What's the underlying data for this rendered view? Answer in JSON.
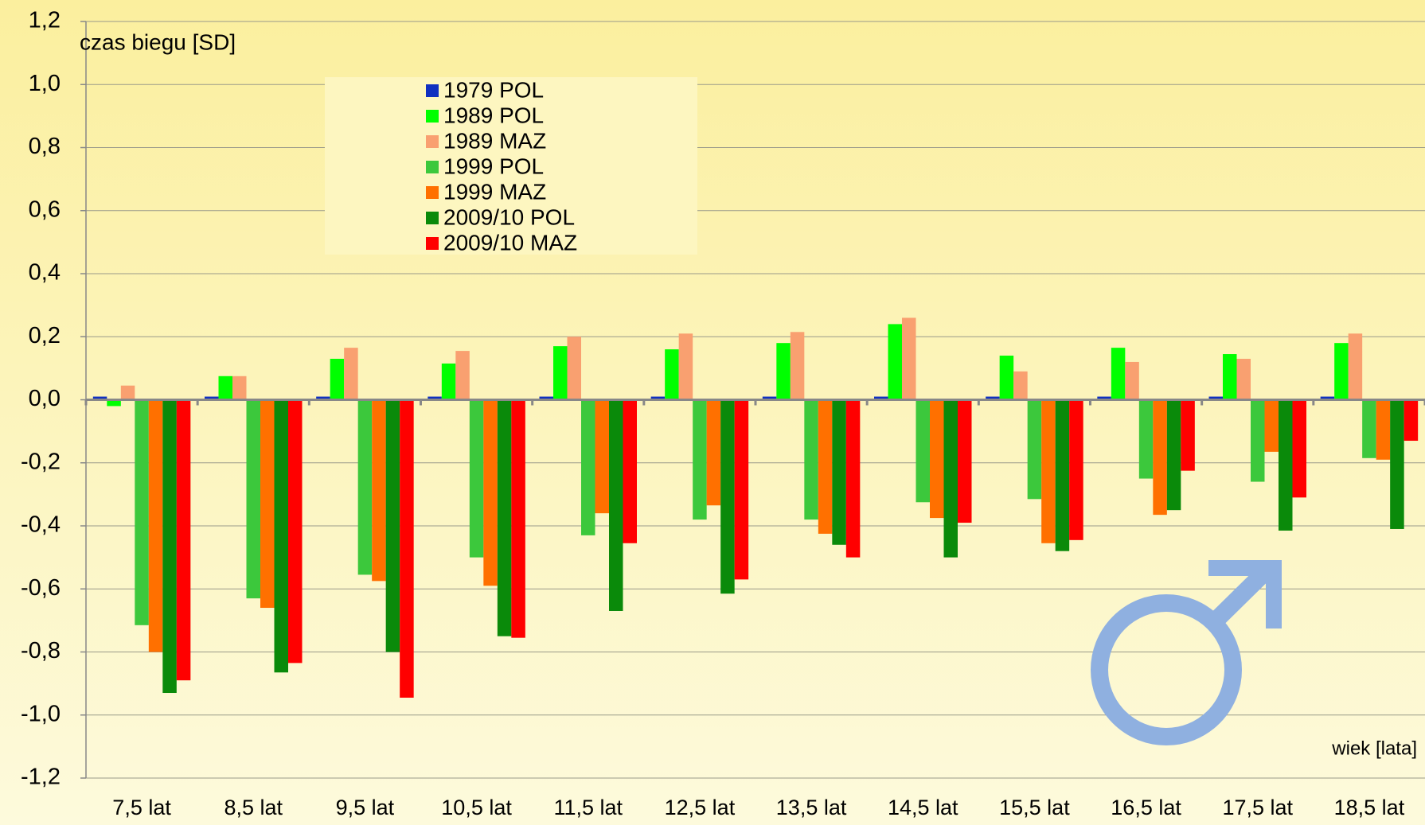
{
  "chart_data": {
    "type": "bar",
    "y_label": "czas biegu [SD]",
    "x_label": "wiek [lata]",
    "categories": [
      "7,5 lat",
      "8,5 lat",
      "9,5 lat",
      "10,5 lat",
      "11,5 lat",
      "12,5 lat",
      "13,5 lat",
      "14,5 lat",
      "15,5 lat",
      "16,5 lat",
      "17,5 lat",
      "18,5 lat"
    ],
    "series": [
      {
        "name": "1979 POL",
        "color": "#1030c0",
        "values": [
          0.01,
          0.01,
          0.01,
          0.01,
          0.01,
          0.01,
          0.01,
          0.01,
          0.01,
          0.01,
          0.01,
          0.01
        ]
      },
      {
        "name": "1989 POL",
        "color": "#00ff00",
        "values": [
          -0.02,
          0.075,
          0.13,
          0.115,
          0.17,
          0.16,
          0.18,
          0.24,
          0.14,
          0.165,
          0.145,
          0.18
        ]
      },
      {
        "name": "1989 MAZ",
        "color": "#f9a070",
        "values": [
          0.045,
          0.075,
          0.165,
          0.155,
          0.2,
          0.21,
          0.215,
          0.26,
          0.09,
          0.12,
          0.13,
          0.21
        ]
      },
      {
        "name": "1999 POL",
        "color": "#3cc83c",
        "values": [
          -0.715,
          -0.63,
          -0.555,
          -0.5,
          -0.43,
          -0.38,
          -0.38,
          -0.325,
          -0.315,
          -0.25,
          -0.26,
          -0.185
        ]
      },
      {
        "name": "1999 MAZ",
        "color": "#ff7000",
        "values": [
          -0.8,
          -0.66,
          -0.575,
          -0.59,
          -0.36,
          -0.335,
          -0.425,
          -0.375,
          -0.455,
          -0.365,
          -0.165,
          -0.19
        ]
      },
      {
        "name": "2009/10 POL",
        "color": "#0a8a0a",
        "values": [
          -0.93,
          -0.865,
          -0.8,
          -0.75,
          -0.67,
          -0.615,
          -0.46,
          -0.5,
          -0.48,
          -0.35,
          -0.415,
          -0.41
        ]
      },
      {
        "name": "2009/10 MAZ",
        "color": "#ff0000",
        "values": [
          -0.89,
          -0.835,
          -0.945,
          -0.755,
          -0.455,
          -0.57,
          -0.5,
          -0.39,
          -0.445,
          -0.225,
          -0.31,
          -0.13
        ]
      }
    ],
    "ylim": [
      -1.2,
      1.2
    ],
    "yticks": [
      {
        "value": -1.2,
        "label": "-1,2"
      },
      {
        "value": -1.0,
        "label": "-1,0"
      },
      {
        "value": -0.8,
        "label": "-0,8"
      },
      {
        "value": -0.6,
        "label": "-0,6"
      },
      {
        "value": -0.4,
        "label": "-0,4"
      },
      {
        "value": -0.2,
        "label": "-0,2"
      },
      {
        "value": 0,
        "label": "0,0"
      },
      {
        "value": 0.2,
        "label": "0,2"
      },
      {
        "value": 0.4,
        "label": "0,4"
      },
      {
        "value": 0.6,
        "label": "0,6"
      },
      {
        "value": 0.8,
        "label": "0,8"
      },
      {
        "value": 1.0,
        "label": "1,0"
      },
      {
        "value": 1.2,
        "label": "1,2"
      }
    ],
    "grid": true
  }
}
